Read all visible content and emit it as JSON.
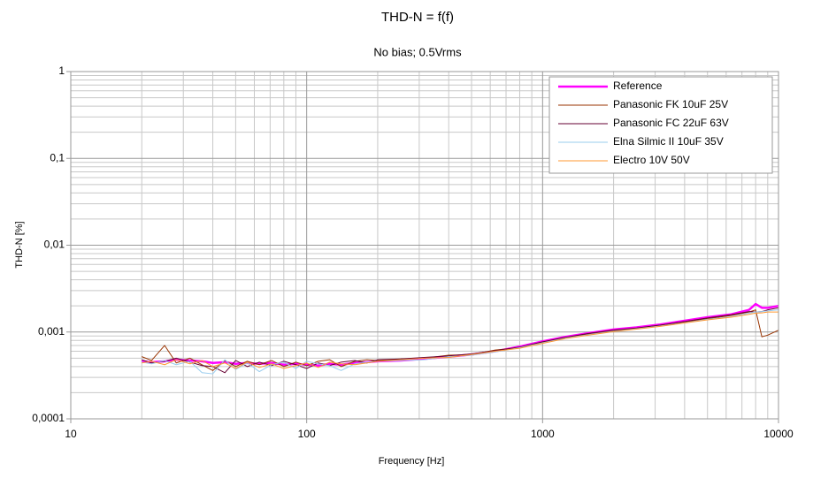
{
  "chart_data": {
    "type": "line",
    "title": "THD-N = f(f)",
    "subtitle": "No bias; 0.5Vrms",
    "x_label": "Frequency [Hz]",
    "y_label": "THD-N [%]",
    "log_x": true,
    "log_y": true,
    "grid": true,
    "legend": "upper right",
    "xlim": [
      10,
      10000
    ],
    "ylim": [
      0.0001,
      1
    ],
    "xticks": [
      10,
      100,
      1000,
      10000
    ],
    "yticks": [
      {
        "value": 0.0001,
        "label": "0,0001"
      },
      {
        "value": 0.001,
        "label": "0,001"
      },
      {
        "value": 0.01,
        "label": "0,01"
      },
      {
        "value": 0.1,
        "label": "0,1"
      },
      1
    ],
    "x": [
      20,
      22,
      25,
      28,
      32,
      36,
      40,
      45,
      50,
      56,
      63,
      71,
      80,
      90,
      100,
      112,
      125,
      140,
      160,
      180,
      200,
      250,
      315,
      400,
      500,
      630,
      800,
      1000,
      1250,
      1600,
      2000,
      2500,
      3150,
      4000,
      5000,
      6300,
      7500,
      8000,
      8500,
      9000,
      10000
    ],
    "series": [
      {
        "name": "Reference",
        "color": "#ff00ff",
        "width": 2.5,
        "values": [
          0.00046,
          0.00045,
          0.00046,
          0.00048,
          0.00047,
          0.00046,
          0.00044,
          0.00045,
          0.00043,
          0.00044,
          0.00043,
          0.00044,
          0.00042,
          0.00043,
          0.00042,
          0.00041,
          0.00043,
          0.00042,
          0.00044,
          0.00045,
          0.00046,
          0.00047,
          0.00049,
          0.00052,
          0.00055,
          0.0006,
          0.00068,
          0.00078,
          0.00088,
          0.00098,
          0.00107,
          0.00113,
          0.00122,
          0.00135,
          0.00148,
          0.0016,
          0.0018,
          0.0021,
          0.0019,
          0.0019,
          0.002
        ]
      },
      {
        "name": "Panasonic FK 10uF 25V",
        "color": "#993300",
        "width": 1,
        "values": [
          0.00052,
          0.00047,
          0.0007,
          0.00044,
          0.0005,
          0.00042,
          0.00036,
          0.00047,
          0.0004,
          0.00046,
          0.00042,
          0.00047,
          0.0004,
          0.00045,
          0.00041,
          0.00046,
          0.00048,
          0.0004,
          0.00046,
          0.00048,
          0.00047,
          0.00049,
          0.0005,
          0.00054,
          0.00055,
          0.00062,
          0.00066,
          0.00076,
          0.00086,
          0.00095,
          0.00104,
          0.0011,
          0.0012,
          0.0013,
          0.00142,
          0.00155,
          0.0017,
          0.0018,
          0.00088,
          0.00092,
          0.00105
        ]
      },
      {
        "name": "Panasonic FC 22uF 63V",
        "color": "#660033",
        "width": 1,
        "values": [
          0.00048,
          0.00044,
          0.00046,
          0.0005,
          0.00045,
          0.00041,
          0.0004,
          0.00034,
          0.00047,
          0.0004,
          0.00045,
          0.00041,
          0.00046,
          0.00042,
          0.00038,
          0.00044,
          0.00041,
          0.00045,
          0.00047,
          0.00044,
          0.00048,
          0.00049,
          0.00051,
          0.00053,
          0.00056,
          0.00061,
          0.00067,
          0.00077,
          0.00087,
          0.00097,
          0.00105,
          0.00111,
          0.0012,
          0.00132,
          0.00145,
          0.00158,
          0.00172,
          0.0017,
          0.00172,
          0.0018,
          0.0019
        ]
      },
      {
        "name": "Elna Silmic II 10uF 35V",
        "color": "#99ccee",
        "width": 1,
        "values": [
          0.00045,
          0.00043,
          0.00047,
          0.00042,
          0.00046,
          0.00034,
          0.00033,
          0.00048,
          0.00037,
          0.00044,
          0.00035,
          0.00042,
          0.00045,
          0.00038,
          0.00046,
          0.00043,
          0.00041,
          0.00036,
          0.00043,
          0.00045,
          0.00046,
          0.00047,
          0.00048,
          0.00052,
          0.00054,
          0.00059,
          0.00066,
          0.00075,
          0.00085,
          0.00094,
          0.00102,
          0.00109,
          0.00117,
          0.00128,
          0.0014,
          0.0015,
          0.00165,
          0.0017,
          0.00172,
          0.00175,
          0.0018
        ]
      },
      {
        "name": "Electro 10V 50V",
        "color": "#ff9933",
        "width": 1,
        "values": [
          0.00044,
          0.00046,
          0.00042,
          0.00048,
          0.00043,
          0.00047,
          0.0004,
          0.00044,
          0.00038,
          0.00045,
          0.00039,
          0.00043,
          0.00038,
          0.00041,
          0.00044,
          0.00039,
          0.00045,
          0.00043,
          0.00042,
          0.00044,
          0.00046,
          0.00048,
          0.0005,
          0.00051,
          0.00055,
          0.0006,
          0.00065,
          0.00074,
          0.00084,
          0.00093,
          0.00101,
          0.00108,
          0.00116,
          0.00127,
          0.00138,
          0.00148,
          0.0016,
          0.00165,
          0.00166,
          0.0017,
          0.0017
        ]
      }
    ]
  }
}
